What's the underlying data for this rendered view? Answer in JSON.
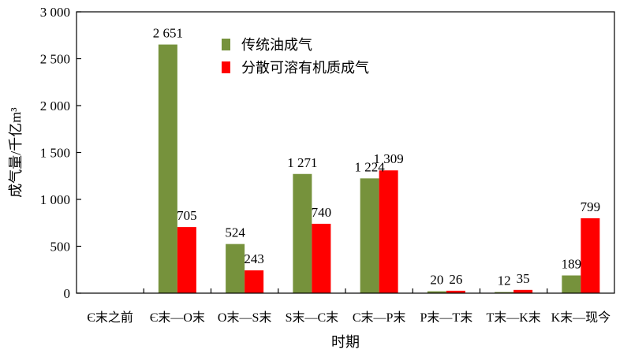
{
  "chart_data": {
    "type": "bar",
    "xlabel": "时期",
    "ylabel": "成气量/千亿m³",
    "ylim": [
      0,
      3000
    ],
    "yticks": [
      "0",
      "500",
      "1 000",
      "1 500",
      "2 000",
      "2 500",
      "3 000"
    ],
    "ytick_values": [
      0,
      500,
      1000,
      1500,
      2000,
      2500,
      3000
    ],
    "categories": [
      "Є末之前",
      "Є末—O末",
      "O末—S末",
      "S末—C末",
      "C末—P末",
      "P末—T末",
      "T末—K末",
      "K末—现今"
    ],
    "legend_position": "top-center",
    "grid": false,
    "series": [
      {
        "name": "传统油成气",
        "color": "#76923c",
        "values": [
          0,
          2651,
          524,
          1271,
          1224,
          20,
          12,
          189
        ],
        "labels": [
          "",
          "2 651",
          "524",
          "1 271",
          "1 224",
          "20",
          "12",
          "189"
        ]
      },
      {
        "name": "分散可溶有机质成气",
        "color": "#ff0000",
        "values": [
          0,
          705,
          243,
          740,
          1309,
          26,
          35,
          799
        ],
        "labels": [
          "",
          "705",
          "243",
          "740",
          "1 309",
          "26",
          "35",
          "799"
        ]
      }
    ]
  }
}
